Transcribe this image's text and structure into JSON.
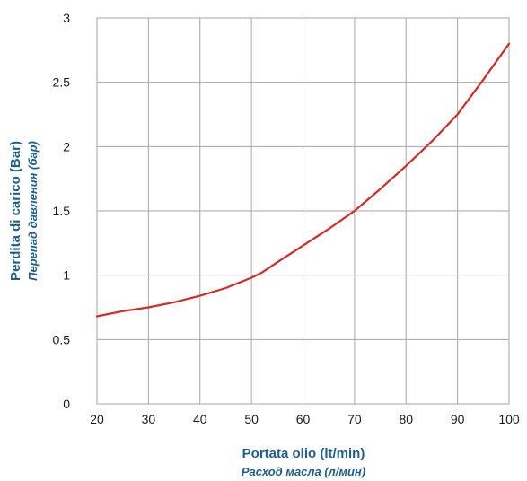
{
  "chart_data": {
    "type": "line",
    "title": "",
    "xlabel": "Portata olio (lt/min)",
    "xlabel_secondary": "Расход масла (л/мин)",
    "ylabel": "Perdita di carico (Bar)",
    "ylabel_secondary": "Перепад давления (бар)",
    "xlim": [
      20,
      100
    ],
    "ylim": [
      0,
      3
    ],
    "x_ticks": [
      20,
      30,
      40,
      50,
      60,
      70,
      80,
      90,
      100
    ],
    "y_ticks": [
      0,
      0.5,
      1,
      1.5,
      2,
      2.5,
      3
    ],
    "x_tick_labels": [
      "20",
      "30",
      "40",
      "50",
      "60",
      "70",
      "80",
      "90",
      "100"
    ],
    "y_tick_labels": [
      "0",
      "0.5",
      "1",
      "1.5",
      "2",
      "2.5",
      "3"
    ],
    "grid": true,
    "series": [
      {
        "color": "#d42a2a",
        "x": [
          20,
          25,
          30,
          35,
          40,
          45,
          50,
          52,
          55,
          60,
          65,
          70,
          75,
          80,
          85,
          90,
          95,
          100
        ],
        "values": [
          0.68,
          0.72,
          0.75,
          0.79,
          0.84,
          0.9,
          0.98,
          1.02,
          1.1,
          1.23,
          1.36,
          1.5,
          1.67,
          1.85,
          2.04,
          2.25,
          2.52,
          2.8
        ]
      }
    ]
  }
}
